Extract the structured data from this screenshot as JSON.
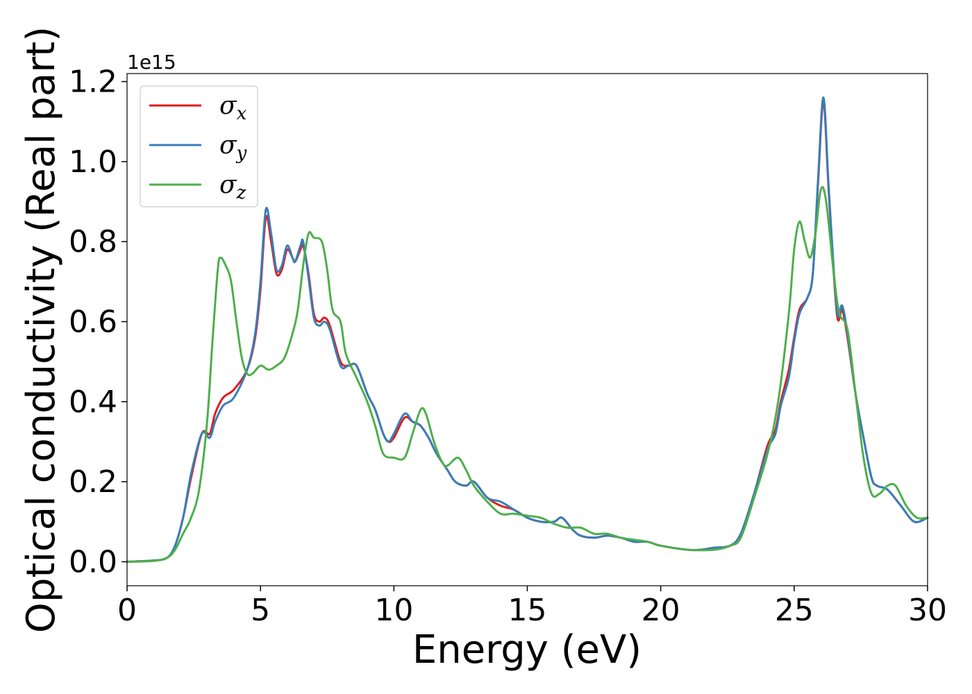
{
  "chart_data": {
    "type": "line",
    "xlabel": "Energy (eV)",
    "ylabel": "Optical conductivity (Real part)",
    "y_offset_label": "1e15",
    "xlim": [
      0,
      30
    ],
    "ylim": [
      -0.06,
      1.22
    ],
    "x_ticks": [
      0,
      5,
      10,
      15,
      20,
      25,
      30
    ],
    "x_tick_labels": [
      "0",
      "5",
      "10",
      "15",
      "20",
      "25",
      "30"
    ],
    "y_ticks": [
      0.0,
      0.2,
      0.4,
      0.6,
      0.8,
      1.0,
      1.2
    ],
    "y_tick_labels": [
      "0.0",
      "0.2",
      "0.4",
      "0.6",
      "0.8",
      "1.0",
      "1.2"
    ],
    "grid": false,
    "legend_position": "top-left",
    "series": [
      {
        "name": "σx",
        "base": "σ",
        "sub": "x",
        "color": "#e41a1c",
        "points": [
          [
            0,
            0
          ],
          [
            1,
            0.003
          ],
          [
            1.5,
            0.01
          ],
          [
            1.8,
            0.04
          ],
          [
            2.1,
            0.11
          ],
          [
            2.4,
            0.21
          ],
          [
            2.8,
            0.32
          ],
          [
            3.1,
            0.32
          ],
          [
            3.3,
            0.37
          ],
          [
            3.6,
            0.41
          ],
          [
            4.0,
            0.43
          ],
          [
            4.5,
            0.48
          ],
          [
            4.8,
            0.56
          ],
          [
            5.0,
            0.68
          ],
          [
            5.2,
            0.86
          ],
          [
            5.4,
            0.8
          ],
          [
            5.6,
            0.72
          ],
          [
            5.8,
            0.73
          ],
          [
            6.0,
            0.78
          ],
          [
            6.2,
            0.76
          ],
          [
            6.3,
            0.75
          ],
          [
            6.5,
            0.78
          ],
          [
            6.6,
            0.79
          ],
          [
            6.8,
            0.72
          ],
          [
            7.0,
            0.62
          ],
          [
            7.2,
            0.6
          ],
          [
            7.4,
            0.61
          ],
          [
            7.6,
            0.59
          ],
          [
            8.0,
            0.5
          ],
          [
            8.3,
            0.49
          ],
          [
            8.6,
            0.49
          ],
          [
            9.0,
            0.42
          ],
          [
            9.3,
            0.38
          ],
          [
            9.6,
            0.32
          ],
          [
            9.8,
            0.3
          ],
          [
            10.0,
            0.31
          ],
          [
            10.4,
            0.36
          ],
          [
            10.7,
            0.35
          ],
          [
            11.0,
            0.34
          ],
          [
            11.3,
            0.31
          ],
          [
            11.6,
            0.27
          ],
          [
            12.0,
            0.23
          ],
          [
            12.3,
            0.2
          ],
          [
            12.7,
            0.19
          ],
          [
            13.0,
            0.2
          ],
          [
            13.5,
            0.16
          ],
          [
            14.0,
            0.14
          ],
          [
            14.5,
            0.13
          ],
          [
            15.0,
            0.11
          ],
          [
            15.5,
            0.1
          ],
          [
            16.0,
            0.1
          ],
          [
            16.3,
            0.11
          ],
          [
            16.7,
            0.08
          ],
          [
            17.0,
            0.065
          ],
          [
            17.5,
            0.06
          ],
          [
            18.0,
            0.065
          ],
          [
            18.5,
            0.06
          ],
          [
            19.0,
            0.05
          ],
          [
            19.5,
            0.05
          ],
          [
            20.0,
            0.04
          ],
          [
            21.0,
            0.03
          ],
          [
            21.5,
            0.03
          ],
          [
            22.0,
            0.035
          ],
          [
            22.6,
            0.04
          ],
          [
            23.0,
            0.07
          ],
          [
            23.5,
            0.17
          ],
          [
            24.0,
            0.29
          ],
          [
            24.3,
            0.33
          ],
          [
            24.5,
            0.4
          ],
          [
            24.8,
            0.48
          ],
          [
            25.0,
            0.56
          ],
          [
            25.2,
            0.63
          ],
          [
            25.5,
            0.66
          ],
          [
            25.7,
            0.72
          ],
          [
            25.9,
            0.95
          ],
          [
            26.1,
            1.15
          ],
          [
            26.3,
            0.92
          ],
          [
            26.6,
            0.62
          ],
          [
            26.8,
            0.63
          ],
          [
            27.0,
            0.56
          ],
          [
            27.3,
            0.42
          ],
          [
            27.6,
            0.31
          ],
          [
            27.9,
            0.21
          ],
          [
            28.1,
            0.19
          ],
          [
            28.5,
            0.18
          ],
          [
            29.0,
            0.14
          ],
          [
            29.5,
            0.1
          ],
          [
            30.0,
            0.11
          ]
        ]
      },
      {
        "name": "σy",
        "base": "σ",
        "sub": "y",
        "color": "#377eb8",
        "points": [
          [
            0,
            0
          ],
          [
            1,
            0.003
          ],
          [
            1.5,
            0.01
          ],
          [
            1.8,
            0.04
          ],
          [
            2.1,
            0.11
          ],
          [
            2.4,
            0.22
          ],
          [
            2.8,
            0.32
          ],
          [
            3.1,
            0.31
          ],
          [
            3.3,
            0.35
          ],
          [
            3.6,
            0.39
          ],
          [
            4.0,
            0.41
          ],
          [
            4.5,
            0.48
          ],
          [
            4.8,
            0.57
          ],
          [
            5.0,
            0.7
          ],
          [
            5.2,
            0.88
          ],
          [
            5.4,
            0.82
          ],
          [
            5.6,
            0.73
          ],
          [
            5.8,
            0.74
          ],
          [
            6.0,
            0.79
          ],
          [
            6.2,
            0.76
          ],
          [
            6.3,
            0.75
          ],
          [
            6.5,
            0.79
          ],
          [
            6.6,
            0.8
          ],
          [
            6.8,
            0.71
          ],
          [
            7.0,
            0.61
          ],
          [
            7.2,
            0.59
          ],
          [
            7.4,
            0.6
          ],
          [
            7.6,
            0.58
          ],
          [
            8.0,
            0.49
          ],
          [
            8.3,
            0.49
          ],
          [
            8.6,
            0.49
          ],
          [
            9.0,
            0.42
          ],
          [
            9.3,
            0.38
          ],
          [
            9.6,
            0.32
          ],
          [
            9.8,
            0.3
          ],
          [
            10.0,
            0.32
          ],
          [
            10.4,
            0.37
          ],
          [
            10.7,
            0.35
          ],
          [
            11.0,
            0.34
          ],
          [
            11.3,
            0.31
          ],
          [
            11.6,
            0.27
          ],
          [
            12.0,
            0.23
          ],
          [
            12.3,
            0.2
          ],
          [
            12.7,
            0.19
          ],
          [
            13.0,
            0.2
          ],
          [
            13.5,
            0.16
          ],
          [
            14.0,
            0.15
          ],
          [
            14.5,
            0.13
          ],
          [
            15.0,
            0.11
          ],
          [
            15.5,
            0.1
          ],
          [
            16.0,
            0.1
          ],
          [
            16.3,
            0.11
          ],
          [
            16.7,
            0.08
          ],
          [
            17.0,
            0.065
          ],
          [
            17.5,
            0.06
          ],
          [
            18.0,
            0.065
          ],
          [
            18.5,
            0.06
          ],
          [
            19.0,
            0.05
          ],
          [
            19.5,
            0.05
          ],
          [
            20.0,
            0.04
          ],
          [
            21.0,
            0.03
          ],
          [
            21.5,
            0.03
          ],
          [
            22.0,
            0.035
          ],
          [
            22.6,
            0.04
          ],
          [
            23.0,
            0.07
          ],
          [
            23.5,
            0.17
          ],
          [
            24.0,
            0.28
          ],
          [
            24.3,
            0.32
          ],
          [
            24.5,
            0.39
          ],
          [
            24.8,
            0.46
          ],
          [
            25.0,
            0.55
          ],
          [
            25.2,
            0.62
          ],
          [
            25.5,
            0.66
          ],
          [
            25.7,
            0.72
          ],
          [
            25.9,
            0.96
          ],
          [
            26.1,
            1.16
          ],
          [
            26.3,
            0.93
          ],
          [
            26.6,
            0.63
          ],
          [
            26.8,
            0.64
          ],
          [
            27.0,
            0.57
          ],
          [
            27.3,
            0.42
          ],
          [
            27.6,
            0.31
          ],
          [
            27.9,
            0.21
          ],
          [
            28.1,
            0.19
          ],
          [
            28.5,
            0.18
          ],
          [
            29.0,
            0.14
          ],
          [
            29.5,
            0.1
          ],
          [
            30.0,
            0.11
          ]
        ]
      },
      {
        "name": "σz",
        "base": "σ",
        "sub": "z",
        "color": "#4daf4a",
        "points": [
          [
            0,
            0
          ],
          [
            1,
            0.002
          ],
          [
            1.5,
            0.01
          ],
          [
            1.8,
            0.03
          ],
          [
            2.1,
            0.07
          ],
          [
            2.4,
            0.11
          ],
          [
            2.7,
            0.18
          ],
          [
            3.0,
            0.35
          ],
          [
            3.2,
            0.55
          ],
          [
            3.4,
            0.73
          ],
          [
            3.5,
            0.76
          ],
          [
            3.7,
            0.74
          ],
          [
            3.9,
            0.7
          ],
          [
            4.1,
            0.6
          ],
          [
            4.3,
            0.51
          ],
          [
            4.5,
            0.47
          ],
          [
            4.7,
            0.47
          ],
          [
            5.0,
            0.49
          ],
          [
            5.3,
            0.48
          ],
          [
            5.6,
            0.49
          ],
          [
            5.9,
            0.51
          ],
          [
            6.2,
            0.57
          ],
          [
            6.4,
            0.63
          ],
          [
            6.6,
            0.74
          ],
          [
            6.8,
            0.82
          ],
          [
            7.0,
            0.81
          ],
          [
            7.3,
            0.8
          ],
          [
            7.5,
            0.73
          ],
          [
            7.7,
            0.63
          ],
          [
            8.0,
            0.6
          ],
          [
            8.2,
            0.52
          ],
          [
            8.6,
            0.46
          ],
          [
            9.0,
            0.4
          ],
          [
            9.3,
            0.34
          ],
          [
            9.6,
            0.27
          ],
          [
            10.0,
            0.26
          ],
          [
            10.4,
            0.26
          ],
          [
            10.7,
            0.32
          ],
          [
            11.0,
            0.38
          ],
          [
            11.2,
            0.37
          ],
          [
            11.5,
            0.3
          ],
          [
            11.8,
            0.25
          ],
          [
            12.0,
            0.24
          ],
          [
            12.4,
            0.26
          ],
          [
            12.7,
            0.23
          ],
          [
            13.0,
            0.19
          ],
          [
            13.5,
            0.15
          ],
          [
            14.0,
            0.12
          ],
          [
            14.5,
            0.12
          ],
          [
            15.0,
            0.115
          ],
          [
            15.5,
            0.11
          ],
          [
            16.0,
            0.095
          ],
          [
            16.5,
            0.085
          ],
          [
            17.0,
            0.085
          ],
          [
            17.5,
            0.07
          ],
          [
            18.0,
            0.07
          ],
          [
            18.5,
            0.06
          ],
          [
            19.0,
            0.055
          ],
          [
            19.5,
            0.05
          ],
          [
            20.0,
            0.04
          ],
          [
            21.0,
            0.03
          ],
          [
            22.0,
            0.03
          ],
          [
            22.6,
            0.04
          ],
          [
            23.0,
            0.06
          ],
          [
            23.5,
            0.16
          ],
          [
            24.0,
            0.27
          ],
          [
            24.4,
            0.4
          ],
          [
            24.8,
            0.62
          ],
          [
            25.0,
            0.78
          ],
          [
            25.2,
            0.85
          ],
          [
            25.4,
            0.8
          ],
          [
            25.6,
            0.76
          ],
          [
            25.8,
            0.82
          ],
          [
            26.0,
            0.93
          ],
          [
            26.2,
            0.9
          ],
          [
            26.5,
            0.71
          ],
          [
            26.7,
            0.62
          ],
          [
            27.0,
            0.58
          ],
          [
            27.3,
            0.42
          ],
          [
            27.6,
            0.26
          ],
          [
            27.9,
            0.17
          ],
          [
            28.2,
            0.17
          ],
          [
            28.5,
            0.19
          ],
          [
            28.8,
            0.19
          ],
          [
            29.2,
            0.14
          ],
          [
            29.6,
            0.11
          ],
          [
            30.0,
            0.11
          ]
        ]
      }
    ]
  }
}
